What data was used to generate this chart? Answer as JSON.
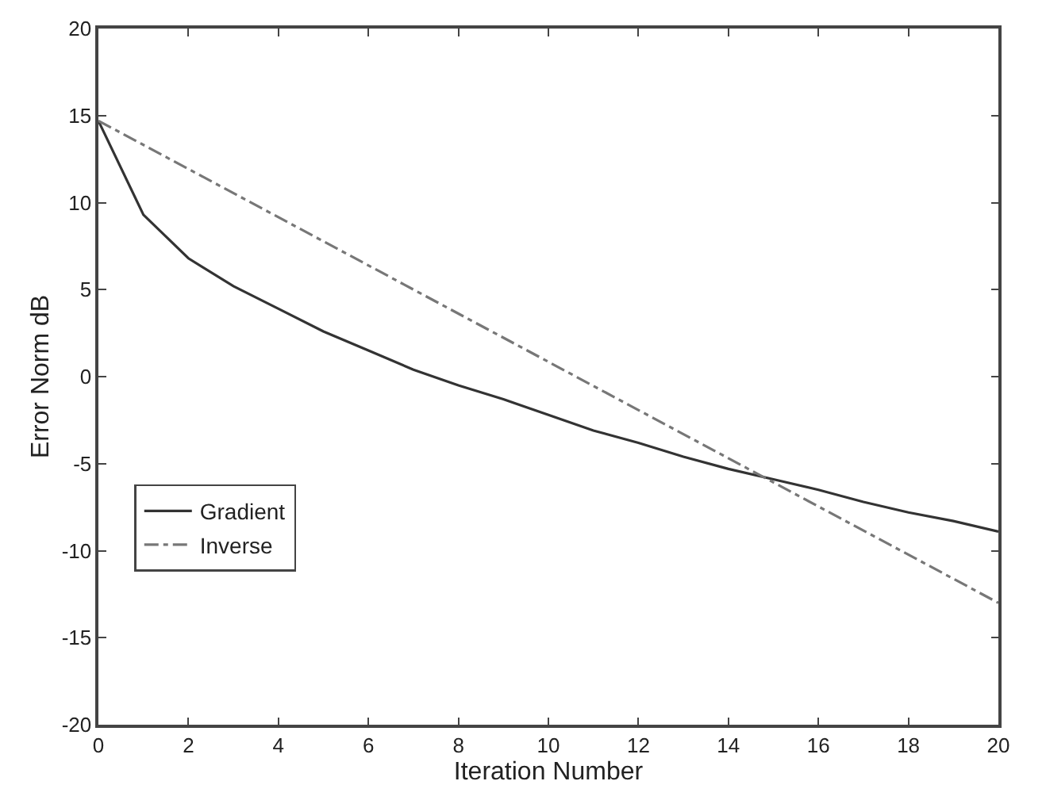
{
  "chart_data": {
    "type": "line",
    "xlabel": "Iteration Number",
    "ylabel": "Error Norm dB",
    "xlim": [
      0,
      20
    ],
    "xticks": [
      0,
      2,
      4,
      6,
      8,
      10,
      12,
      14,
      16,
      18,
      20
    ],
    "ylim": [
      -20,
      20
    ],
    "yticks": [
      -20,
      -15,
      -10,
      -5,
      0,
      5,
      10,
      15,
      20
    ],
    "grid": false,
    "legend": "bottom left",
    "marker": "none",
    "series": [
      {
        "name": "Gradient",
        "color": "#333333",
        "line_style": "solid",
        "x": [
          0,
          1,
          2,
          3,
          4,
          5,
          6,
          7,
          8,
          9,
          10,
          11,
          12,
          13,
          14,
          15,
          16,
          17,
          18,
          19,
          20
        ],
        "values": [
          14.7,
          9.3,
          6.8,
          5.2,
          3.9,
          2.6,
          1.5,
          0.4,
          -0.5,
          -1.3,
          -2.2,
          -3.1,
          -3.8,
          -4.6,
          -5.3,
          -5.9,
          -6.5,
          -7.2,
          -7.8,
          -8.3,
          -8.9
        ]
      },
      {
        "name": "Inverse",
        "color": "#777777",
        "line_style": "dashdot",
        "x": [
          0,
          20
        ],
        "values": [
          14.7,
          -13.0
        ]
      }
    ]
  }
}
